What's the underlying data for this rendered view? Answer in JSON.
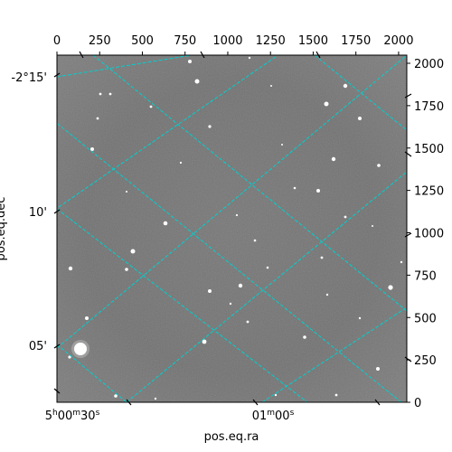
{
  "chart_data": {
    "type": "image",
    "xlabel": "pos.eq.ra",
    "ylabel": "pos.eq.dec",
    "pixel_axes": {
      "x_range": [
        0,
        2048
      ],
      "y_range": [
        0,
        2048
      ],
      "top_ticks": [
        0,
        250,
        500,
        750,
        1000,
        1250,
        1500,
        1750,
        2000
      ],
      "right_ticks": [
        0,
        250,
        500,
        750,
        1000,
        1250,
        1500,
        1750,
        2000
      ]
    },
    "world_ticks": {
      "ra": [
        {
          "label_main": "5",
          "label_h": "h",
          "label_mid": "00",
          "label_m": "m",
          "label_end": "30",
          "label_s": "s"
        },
        {
          "label_main": "01",
          "label_m": "m",
          "label_mid": "00",
          "label_s": "s"
        }
      ],
      "dec": [
        "-2°15'",
        "10'",
        "05'"
      ]
    },
    "grid": {
      "color": "#00d0d0",
      "style": "dashed"
    },
    "image_colormap": "gray"
  }
}
